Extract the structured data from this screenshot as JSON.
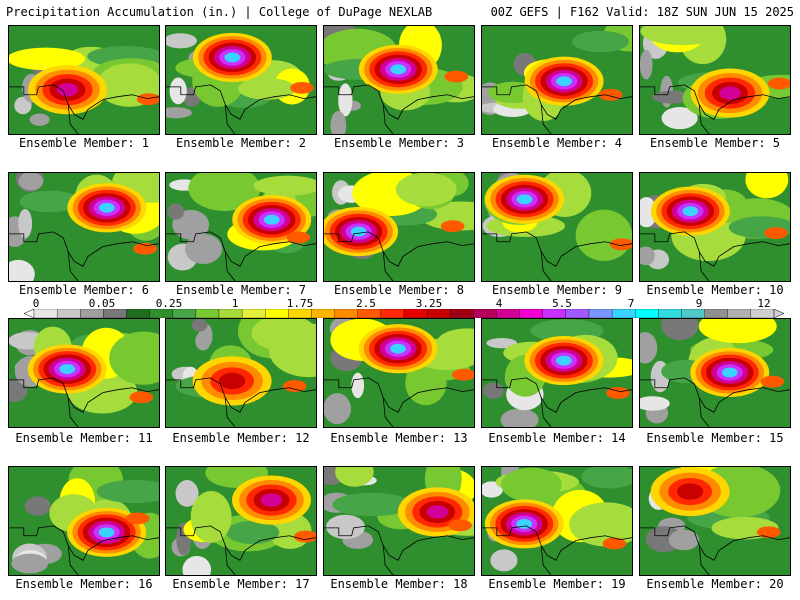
{
  "header": {
    "left": "Precipitation Accumulation (in.) | College of DuPage NEXLAB",
    "right": "00Z GEFS | F162 Valid: 18Z SUN JUN 15 2025"
  },
  "panels": [
    {
      "label": "Ensemble Member: 1",
      "peak": "magenta"
    },
    {
      "label": "Ensemble Member: 2",
      "peak": "cyan"
    },
    {
      "label": "Ensemble Member: 3",
      "peak": "cyan"
    },
    {
      "label": "Ensemble Member: 4",
      "peak": "cyan"
    },
    {
      "label": "Ensemble Member: 5",
      "peak": "magenta"
    },
    {
      "label": "Ensemble Member: 6",
      "peak": "cyan"
    },
    {
      "label": "Ensemble Member: 7",
      "peak": "cyan"
    },
    {
      "label": "Ensemble Member: 8",
      "peak": "cyan"
    },
    {
      "label": "Ensemble Member: 9",
      "peak": "cyan"
    },
    {
      "label": "Ensemble Member: 10",
      "peak": "cyan"
    },
    {
      "label": "Ensemble Member: 11",
      "peak": "cyan"
    },
    {
      "label": "Ensemble Member: 12",
      "peak": "red"
    },
    {
      "label": "Ensemble Member: 13",
      "peak": "cyan"
    },
    {
      "label": "Ensemble Member: 14",
      "peak": "cyan"
    },
    {
      "label": "Ensemble Member: 15",
      "peak": "cyan"
    },
    {
      "label": "Ensemble Member: 16",
      "peak": "cyan"
    },
    {
      "label": "Ensemble Member: 17",
      "peak": "magenta"
    },
    {
      "label": "Ensemble Member: 18",
      "peak": "magenta"
    },
    {
      "label": "Ensemble Member: 19",
      "peak": "cyan"
    },
    {
      "label": "Ensemble Member: 20",
      "peak": "red"
    }
  ],
  "legend": {
    "labels": [
      "0",
      "0.05",
      "0.25",
      "1",
      "1.75",
      "2.5",
      "3.25",
      "4",
      "5.5",
      "7",
      "9",
      "12"
    ],
    "colors": [
      "#e6e6e6",
      "#c8c8c8",
      "#a0a0a0",
      "#787878",
      "#1e6e1e",
      "#2f8f2f",
      "#46a546",
      "#78c832",
      "#a6dc3c",
      "#e6f03c",
      "#ffff00",
      "#ffd700",
      "#ffb400",
      "#ff8c00",
      "#ff5a00",
      "#ff2800",
      "#e60000",
      "#c80000",
      "#a00014",
      "#b4005a",
      "#d20096",
      "#f000d2",
      "#c832ff",
      "#a05aff",
      "#7896ff",
      "#3cd2ff",
      "#00ffff",
      "#32dcdc",
      "#50c8c8",
      "#909090",
      "#b0b0b0",
      "#d0d0d0"
    ]
  }
}
